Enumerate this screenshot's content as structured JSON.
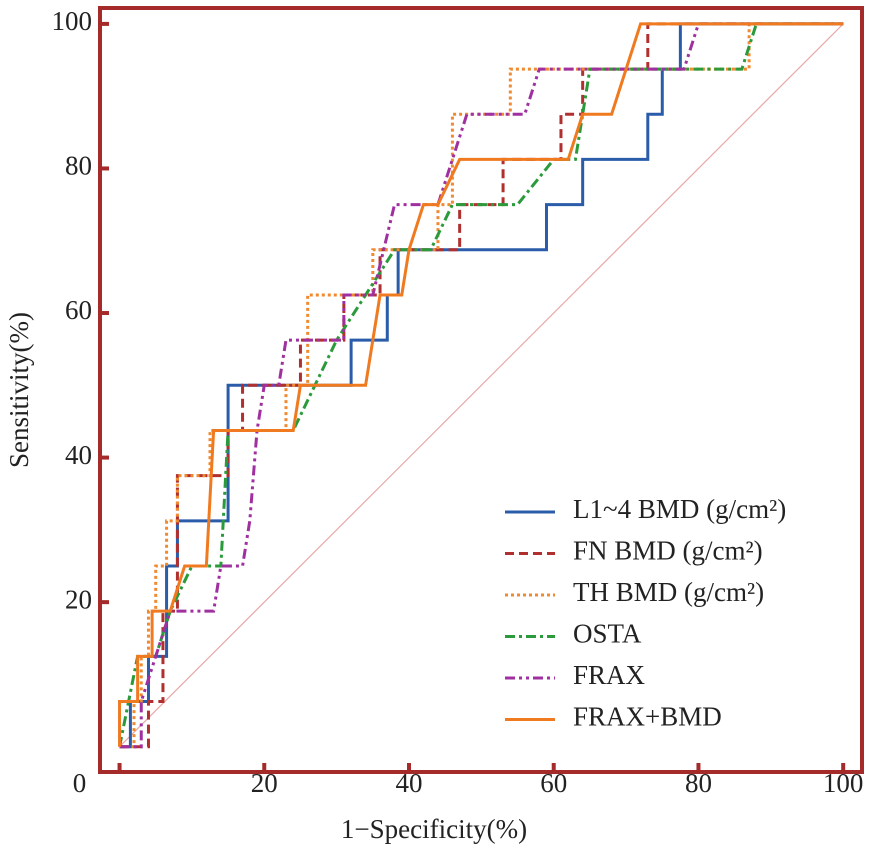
{
  "chart_data": {
    "type": "line",
    "xlabel": "1−Specificity(%)",
    "ylabel": "Sensitivity(%)",
    "xlim": [
      -2.7,
      102.6
    ],
    "ylim": [
      -3.5,
      102.2
    ],
    "xticks": [
      0,
      20,
      40,
      60,
      80,
      100
    ],
    "yticks": [
      20,
      40,
      60,
      80,
      100
    ],
    "legend": "lower right",
    "series": [
      {
        "name": "L1~4 BMD (g/cm²)",
        "color": "#2a5caa",
        "style": "solid",
        "x": [
          0,
          1.5,
          1.5,
          4,
          4,
          6.5,
          6.5,
          8,
          8,
          15,
          15,
          32,
          32,
          37,
          37,
          38.5,
          38.5,
          59,
          59,
          64,
          64,
          73,
          73,
          75,
          75,
          77.5,
          77.5,
          100
        ],
        "values": [
          0,
          0,
          6.25,
          6.25,
          12.5,
          12.5,
          25,
          25,
          31.25,
          31.25,
          50,
          50,
          56.25,
          56.25,
          62.5,
          62.5,
          68.75,
          68.75,
          75,
          75,
          81.25,
          81.25,
          87.5,
          87.5,
          93.75,
          93.75,
          100,
          100
        ]
      },
      {
        "name": "FN BMD (g/cm²)",
        "color": "#b03030",
        "style": "dashed",
        "x": [
          0,
          4,
          4,
          6,
          6,
          8,
          8,
          15,
          15,
          17,
          17,
          25,
          25,
          31,
          31,
          36,
          36,
          47,
          47,
          53,
          53,
          61,
          61,
          64,
          64,
          73,
          73,
          100
        ],
        "values": [
          0,
          0,
          6.25,
          6.25,
          18.75,
          18.75,
          37.5,
          37.5,
          43.75,
          43.75,
          50,
          50,
          56.25,
          56.25,
          62.5,
          62.5,
          68.75,
          68.75,
          75,
          75,
          81.25,
          81.25,
          87.5,
          87.5,
          93.75,
          93.75,
          100,
          100
        ]
      },
      {
        "name": "TH BMD (g/cm²)",
        "color": "#f08a30",
        "style": "dotted",
        "x": [
          0,
          2,
          2,
          3,
          3,
          4,
          4,
          5,
          5,
          6.5,
          6.5,
          8,
          8,
          12.5,
          12.5,
          23,
          23,
          26,
          26,
          35,
          35,
          44,
          44,
          46,
          46,
          54,
          54,
          87,
          87,
          100
        ],
        "values": [
          0,
          0,
          6.25,
          6.25,
          12.5,
          12.5,
          18.75,
          18.75,
          25,
          25,
          31.25,
          31.25,
          37.5,
          37.5,
          43.75,
          43.75,
          50,
          50,
          62.5,
          62.5,
          68.75,
          68.75,
          75,
          75,
          87.5,
          87.5,
          93.75,
          93.75,
          100,
          100
        ]
      },
      {
        "name": "OSTA",
        "color": "#2a9a3a",
        "style": "dashdot",
        "x": [
          0,
          2.5,
          5,
          7,
          10,
          14,
          15,
          24,
          27,
          30,
          38,
          43,
          46,
          55,
          60,
          63,
          65,
          86,
          88,
          100
        ],
        "values": [
          0,
          12.5,
          12.5,
          18.75,
          25,
          25,
          43.75,
          43.75,
          50,
          56.25,
          68.75,
          68.75,
          75,
          75,
          81.25,
          81.25,
          93.75,
          93.75,
          100,
          100
        ]
      },
      {
        "name": "FRAX",
        "color": "#a030a0",
        "style": "dashdotdot",
        "x": [
          0,
          3,
          3,
          5,
          7,
          13,
          14,
          17,
          18,
          19,
          20,
          22,
          23,
          31,
          31,
          35,
          38,
          44,
          46,
          48,
          56,
          58,
          78,
          80,
          100
        ],
        "values": [
          0,
          0,
          6.25,
          12.5,
          18.75,
          18.75,
          25,
          25,
          31.25,
          43.75,
          50,
          50,
          56.25,
          56.25,
          62.5,
          62.5,
          75,
          75,
          81.25,
          87.5,
          87.5,
          93.75,
          93.75,
          100,
          100
        ]
      },
      {
        "name": "FRAX+BMD",
        "color": "#f07a20",
        "style": "solid",
        "x": [
          0,
          0,
          2.5,
          2.5,
          4.5,
          4.5,
          7,
          9,
          12,
          13,
          24,
          25,
          34,
          36,
          39,
          40,
          42,
          44,
          47,
          62,
          64,
          68,
          72,
          100
        ],
        "values": [
          0,
          6.25,
          6.25,
          12.5,
          12.5,
          18.75,
          18.75,
          25,
          25,
          43.75,
          43.75,
          50,
          50,
          62.5,
          62.5,
          68.75,
          75,
          75,
          81.25,
          81.25,
          87.5,
          87.5,
          100,
          100
        ]
      }
    ]
  }
}
